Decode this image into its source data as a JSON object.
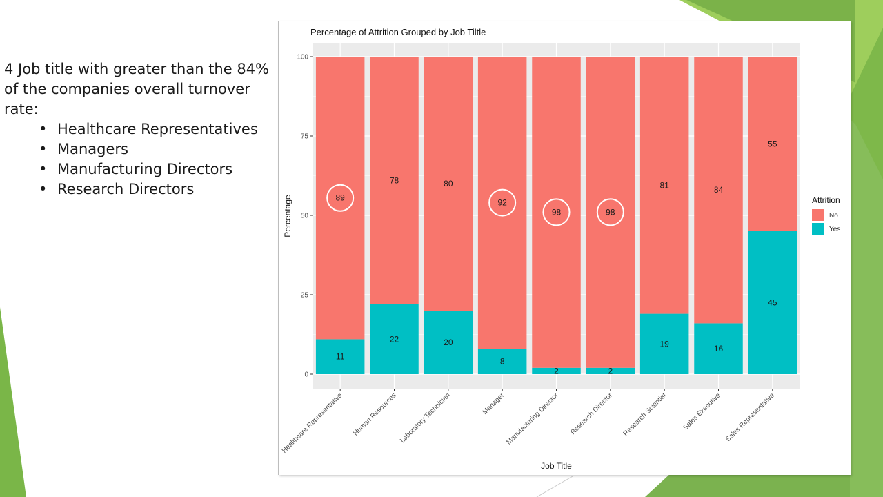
{
  "slide": {
    "intro": "4 Job title with greater than the 84% of the companies overall turnover rate:",
    "bullets": [
      "Healthcare Representatives",
      "Managers",
      "Manufacturing Directors",
      "Research Directors"
    ]
  },
  "chart_data": {
    "type": "bar",
    "stacked": true,
    "title": "Percentage of Attrition Grouped by Job Tiltle",
    "xlabel": "Job Title",
    "ylabel": "Percentage",
    "ylim": [
      0,
      100
    ],
    "yticks": [
      "0",
      "25",
      "50",
      "75",
      "100"
    ],
    "categories": [
      "Healthcare Representative",
      "Human Resources",
      "Laboratory Technician",
      "Manager",
      "Manufacturing Director",
      "Research Director",
      "Research Scientist",
      "Sales Executive",
      "Sales Representative"
    ],
    "series": [
      {
        "name": "No",
        "color": "#F8766D",
        "values": [
          89,
          78,
          80,
          92,
          98,
          98,
          81,
          84,
          55
        ]
      },
      {
        "name": "Yes",
        "color": "#00BFC4",
        "values": [
          11,
          22,
          20,
          8,
          2,
          2,
          19,
          16,
          45
        ]
      }
    ],
    "legend": {
      "title": "Attrition",
      "position": "right"
    },
    "highlighted_categories": [
      "Healthcare Representative",
      "Manager",
      "Manufacturing Director",
      "Research Director"
    ],
    "grid": true
  },
  "colors": {
    "panel_background": "#EBEBEB",
    "gridline": "#FFFFFF",
    "highlight_circle": "#FFFFFF",
    "accent_green": "#7AB648",
    "accent_dark_green": "#5E9B3A"
  }
}
